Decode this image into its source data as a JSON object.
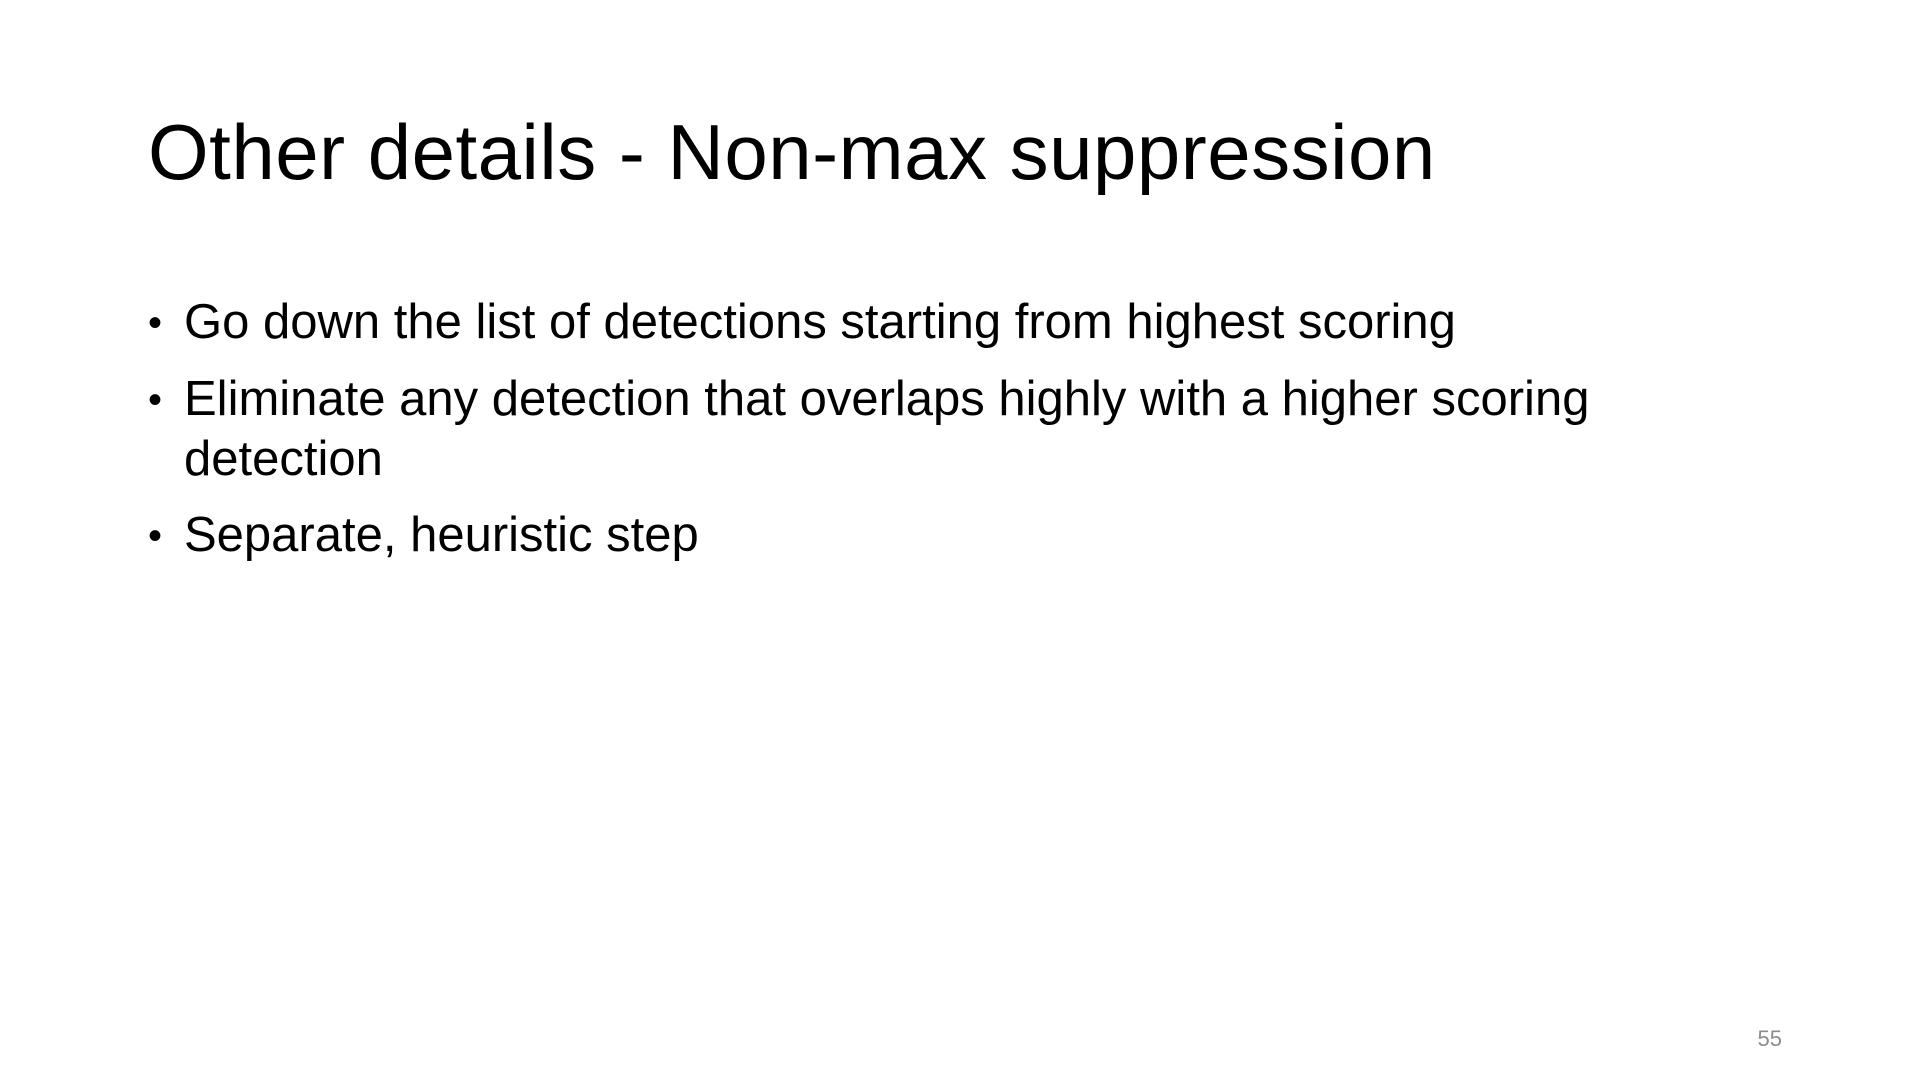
{
  "slide": {
    "title": "Other details - Non-max suppression",
    "bullets": [
      "Go down the list of detections starting from highest scoring",
      "Eliminate any detection that overlaps highly with a higher scoring detection",
      "Separate, heuristic step"
    ],
    "bullet_glyph": "•",
    "page_number": "55"
  },
  "colors": {
    "background": "#ffffff",
    "text": "#000000",
    "page_number": "#8c8c8c"
  }
}
